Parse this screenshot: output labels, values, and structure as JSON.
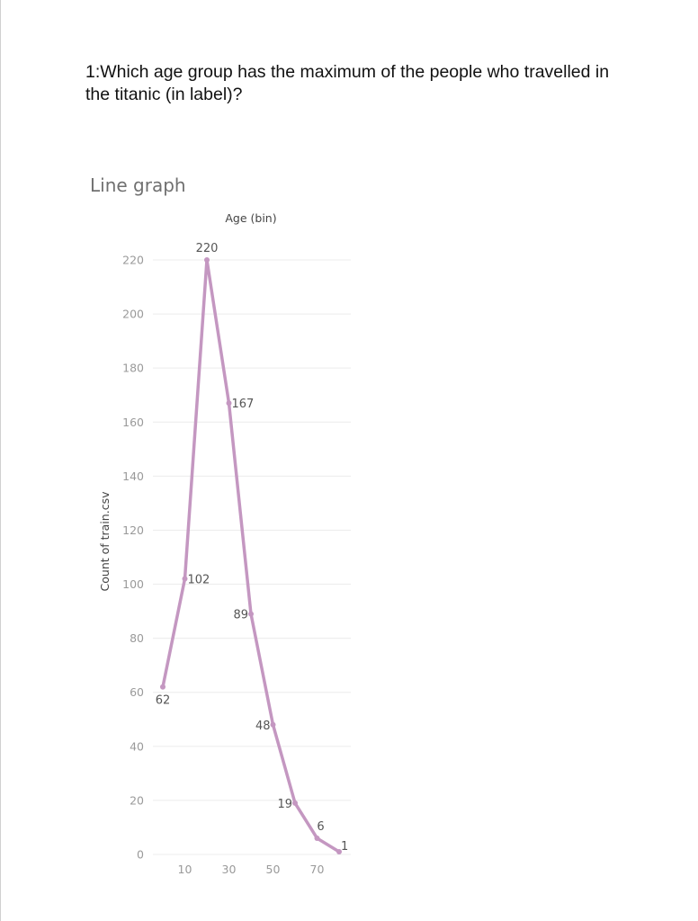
{
  "question": "1:Which age group has the maximum of the people who travelled in the titanic (in label)?",
  "chart_caption": "Line graph",
  "colors": {
    "line": "#c497c1",
    "grid": "#ececec"
  },
  "chart_data": {
    "type": "line",
    "xlabel": "Age (bin)",
    "ylabel": "Count of train.csv",
    "x": [
      0,
      10,
      20,
      30,
      40,
      50,
      60,
      70,
      80
    ],
    "values": [
      62,
      102,
      220,
      167,
      89,
      48,
      19,
      6,
      1
    ],
    "data_labels": [
      "62",
      "102",
      "220",
      "167",
      "89",
      "48",
      "19",
      "6",
      "1"
    ],
    "x_ticks": [
      10,
      30,
      50,
      70
    ],
    "y_ticks": [
      0,
      20,
      40,
      60,
      80,
      100,
      120,
      140,
      160,
      180,
      200,
      220
    ],
    "xlim": [
      0,
      80
    ],
    "ylim": [
      0,
      220
    ],
    "grid": true
  }
}
